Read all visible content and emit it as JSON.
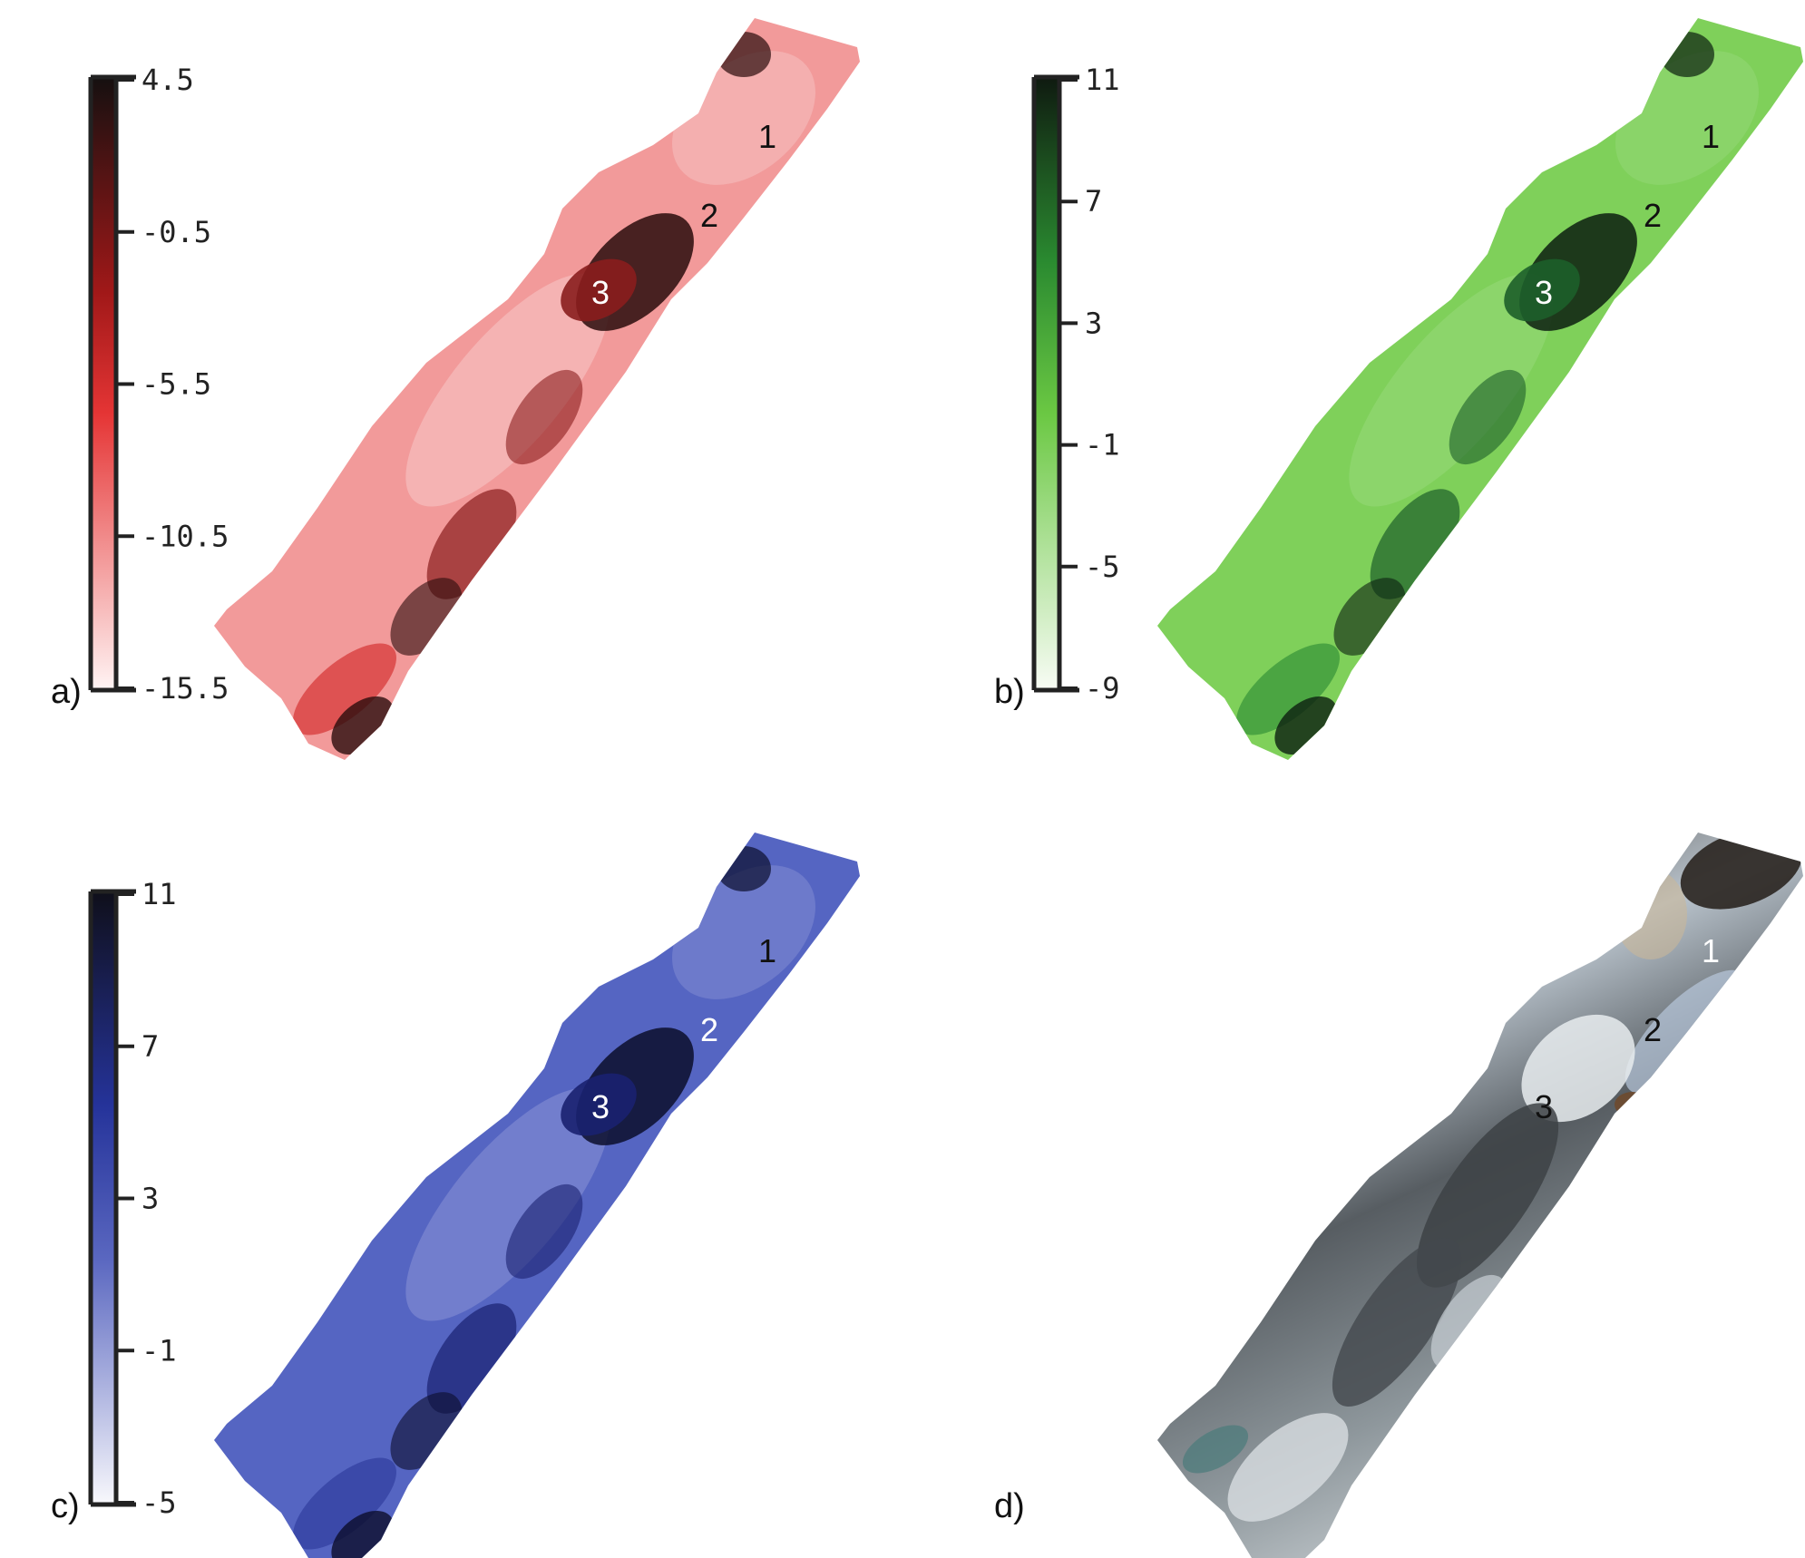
{
  "panels": [
    {
      "id": "a",
      "label": "a)",
      "colormap": {
        "light": "#fff0f0",
        "mid": "#e53535",
        "dark": "#151010"
      },
      "ticks": [
        "4.5",
        "-0.5",
        "-5.5",
        "-10.5",
        "-15.5"
      ],
      "regions": [
        {
          "text": "1",
          "color": "#111111"
        },
        {
          "text": "2",
          "color": "#111111"
        },
        {
          "text": "3",
          "color": "#ffffff"
        }
      ],
      "map_colors": {
        "base": "#f29a9a",
        "light": "#f6c4c4",
        "dark": "#8a1d1d",
        "darkest": "#2a0c0c",
        "mid": "#d84040"
      }
    },
    {
      "id": "b",
      "label": "b)",
      "colormap": {
        "light": "#f4fbf0",
        "mid": "#5fc43a",
        "dark": "#0f1a10"
      },
      "ticks": [
        "11",
        "7",
        "3",
        "-1",
        "-5",
        "-9"
      ],
      "regions": [
        {
          "text": "1",
          "color": "#111111"
        },
        {
          "text": "2",
          "color": "#111111"
        },
        {
          "text": "3",
          "color": "#ffffff"
        }
      ],
      "map_colors": {
        "base": "#7fd05a",
        "light": "#95d877",
        "dark": "#1d5f2a",
        "darkest": "#0c1f10",
        "mid": "#3f9a3c"
      }
    },
    {
      "id": "c",
      "label": "c)",
      "colormap": {
        "light": "#f4f4fb",
        "mid": "#3a4eb4",
        "dark": "#0f0f1a"
      },
      "ticks": [
        "11",
        "7",
        "3",
        "-1",
        "-5"
      ],
      "regions": [
        {
          "text": "1",
          "color": "#111111"
        },
        {
          "text": "2",
          "color": "#ffffff"
        },
        {
          "text": "3",
          "color": "#ffffff"
        }
      ],
      "map_colors": {
        "base": "#5565c2",
        "light": "#8690d3",
        "dark": "#1a2170",
        "darkest": "#0c0e2c",
        "mid": "#3542a3"
      }
    },
    {
      "id": "d",
      "label": "d)",
      "regions": [
        {
          "text": "1",
          "color": "#ffffff"
        },
        {
          "text": "2",
          "color": "#111111"
        },
        {
          "text": "3",
          "color": "#111111"
        }
      ],
      "map_colors": {
        "base": "#6a6f73",
        "light": "#d8dde2",
        "dark": "#2b2b2b",
        "darkest": "#151515",
        "mid": "#8d969b"
      }
    }
  ]
}
